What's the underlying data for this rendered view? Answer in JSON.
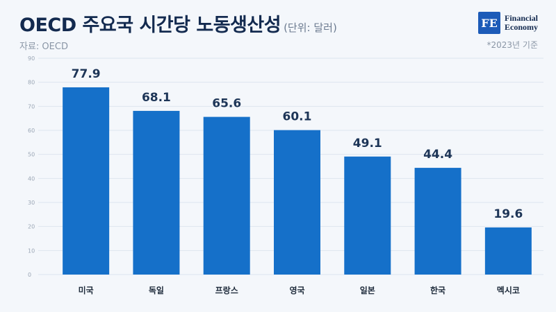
{
  "header": {
    "title": "OECD 주요국 시간당 노동생산성",
    "unit": "(단위: 달러)",
    "source": "자료: OECD",
    "note": "*2023년 기준"
  },
  "logo": {
    "mark": "FE",
    "line1": "Financial",
    "line2": "Economy"
  },
  "colors": {
    "bar": "#1570c9",
    "accent": "#1c5bb8"
  },
  "chart_data": {
    "type": "bar",
    "categories": [
      "미국",
      "독일",
      "프랑스",
      "영국",
      "일본",
      "한국",
      "멕시코"
    ],
    "values": [
      77.9,
      68.1,
      65.6,
      60.1,
      49.1,
      44.4,
      19.6
    ],
    "title": "OECD 주요국 시간당 노동생산성",
    "ylim": [
      0,
      90
    ],
    "yticks": [
      0,
      10,
      20,
      30,
      40,
      50,
      60,
      70,
      80,
      90
    ],
    "grid": true
  }
}
